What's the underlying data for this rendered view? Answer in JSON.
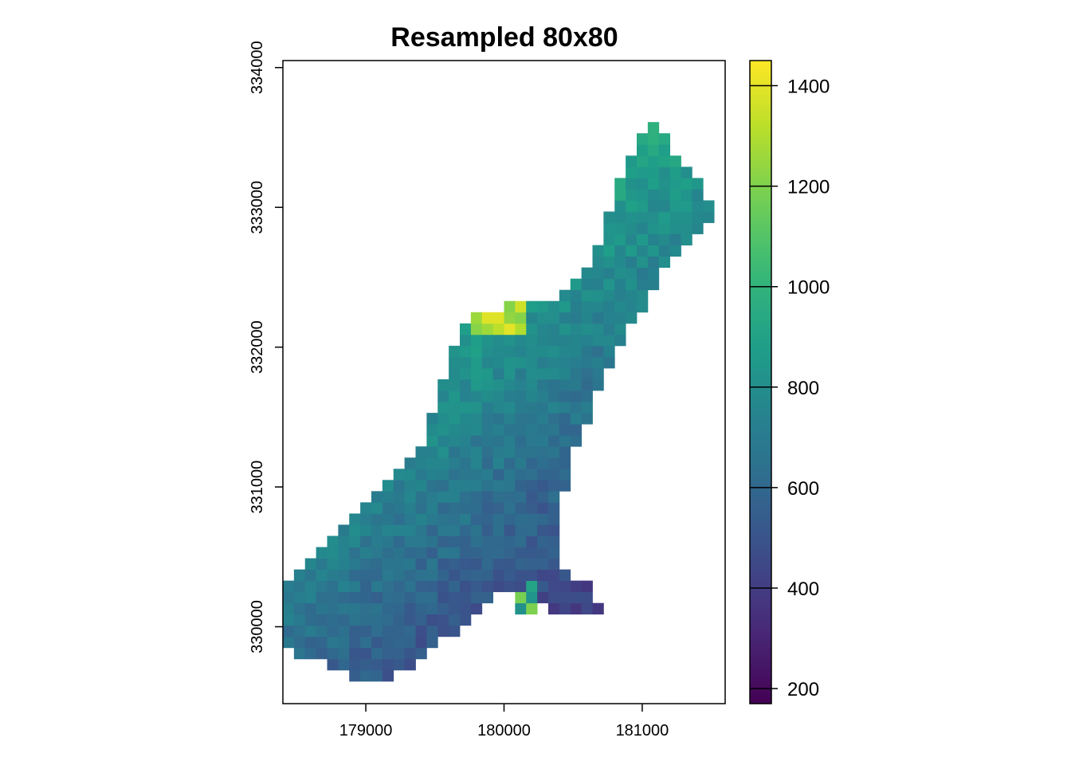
{
  "chart_data": {
    "type": "heatmap",
    "title": "Resampled 80x80",
    "xlabel": "",
    "ylabel": "",
    "xlim": [
      178400,
      181600
    ],
    "ylim": [
      329450,
      334050
    ],
    "x_ticks": [
      179000,
      180000,
      181000
    ],
    "x_tick_labels": [
      "179000",
      "180000",
      "181000"
    ],
    "y_ticks": [
      330000,
      331000,
      332000,
      333000,
      334000
    ],
    "y_tick_labels": [
      "330000",
      "331000",
      "332000",
      "333000",
      "334000"
    ],
    "cell_size": 80,
    "colorscale": "viridis",
    "value_range": [
      170,
      1450
    ],
    "colorbar_ticks": [
      200,
      400,
      600,
      800,
      1000,
      1200,
      1400
    ],
    "colorbar_tick_labels": [
      "200",
      "400",
      "600",
      "800",
      "1000",
      "1200",
      "1400"
    ],
    "colors": {
      "viridis": [
        "#440154",
        "#482878",
        "#3e4a89",
        "#31688e",
        "#26828e",
        "#1f9e89",
        "#35b779",
        "#6ece58",
        "#b5de2b",
        "#fde725"
      ],
      "frame": "#000000",
      "background": "#ffffff"
    }
  }
}
